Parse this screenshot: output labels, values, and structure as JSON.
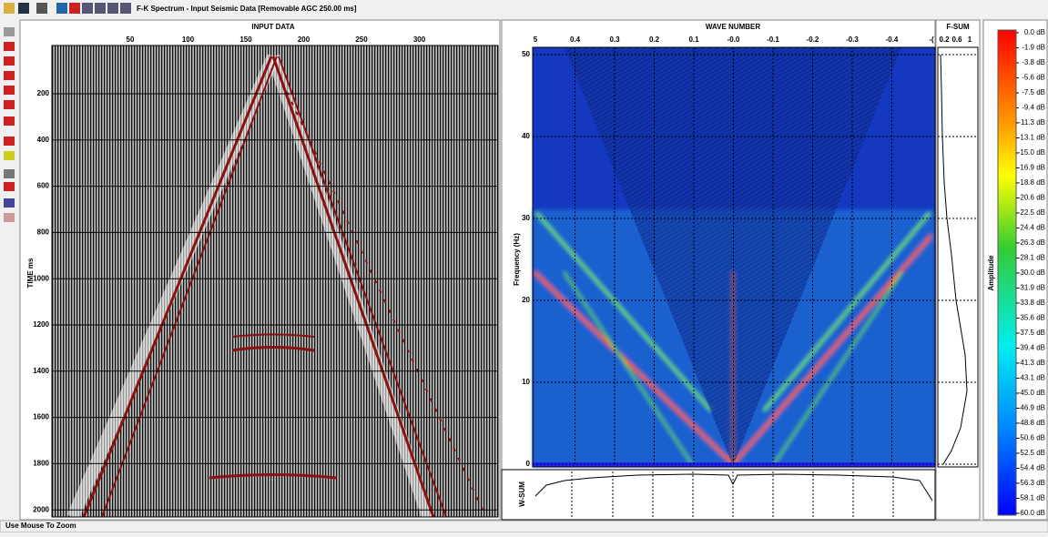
{
  "window": {
    "title": "F-K Spectrum - Input Seismic Data [Removable AGC 250.00 ms]"
  },
  "input_panel": {
    "title": "INPUT DATA",
    "y_label": "TIME ms",
    "x_ticks": [
      "50",
      "100",
      "150",
      "200",
      "250",
      "300"
    ],
    "y_ticks": [
      "200",
      "400",
      "600",
      "800",
      "1000",
      "1200",
      "1400",
      "1600",
      "1800",
      "2000"
    ]
  },
  "fk_panel": {
    "title": "WAVE NUMBER",
    "y_label": "Frequency (Hz)",
    "x_ticks": [
      "5",
      "0.4",
      "0.3",
      "0.2",
      "0.1",
      "-0.0",
      "-0.1",
      "-0.2",
      "-0.3",
      "-0.4",
      "-("
    ],
    "y_ticks": [
      "0",
      "10",
      "20",
      "30",
      "40",
      "50"
    ]
  },
  "fsum_panel": {
    "title": "F-SUM",
    "x_ticks": [
      "0.2",
      "0.6",
      "1"
    ]
  },
  "wsum_panel": {
    "title": "W-SUM"
  },
  "colorbar": {
    "title": "Amplitude",
    "labels": [
      "0.0 dB",
      "-1.9 dB",
      "-3.8 dB",
      "-5.6 dB",
      "-7.5 dB",
      "-9.4 dB",
      "-11.3 dB",
      "-13.1 dB",
      "-15.0 dB",
      "-16.9 dB",
      "-18.8 dB",
      "-20.6 dB",
      "-22.5 dB",
      "-24.4 dB",
      "-26.3 dB",
      "-28.1 dB",
      "-30.0 dB",
      "-31.9 dB",
      "-33.8 dB",
      "-35.6 dB",
      "-37.5 dB",
      "-39.4 dB",
      "-41.3 dB",
      "-43.1 dB",
      "-45.0 dB",
      "-46.9 dB",
      "-48.8 dB",
      "-50.6 dB",
      "-52.5 dB",
      "-54.4 dB",
      "-56.3 dB",
      "-58.1 dB",
      "-60.0 dB"
    ]
  },
  "status_bar": {
    "text": "Use Mouse To Zoom"
  }
}
